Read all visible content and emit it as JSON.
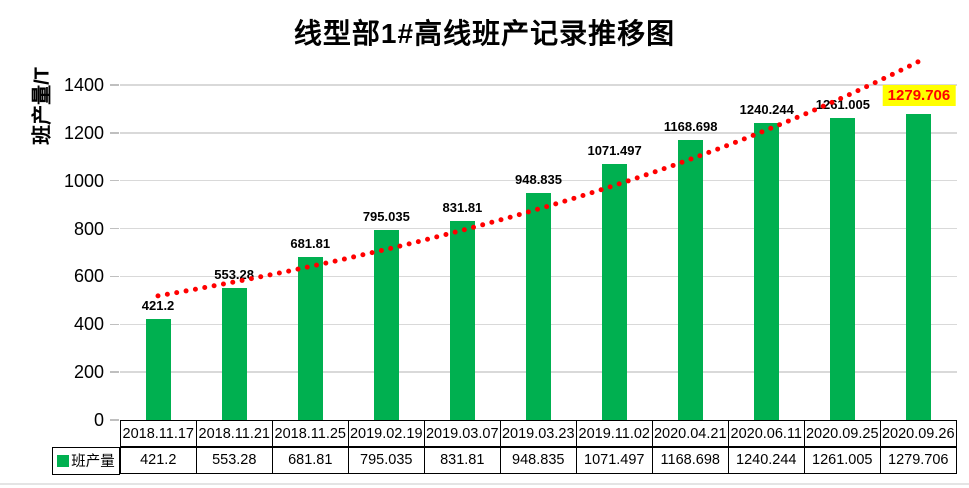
{
  "chart_data": {
    "type": "bar",
    "title": "线型部1#高线班产记录推移图",
    "ylabel": "班产量/T",
    "xlabel": "",
    "categories": [
      "2018.11.17",
      "2018.11.21",
      "2018.11.25",
      "2019.02.19",
      "2019.03.07",
      "2019.03.23",
      "2019.11.02",
      "2020.04.21",
      "2020.06.11",
      "2020.09.25",
      "2020.09.26"
    ],
    "series": [
      {
        "name": "班产量",
        "values": [
          421.2,
          553.28,
          681.81,
          795.035,
          831.81,
          948.835,
          1071.497,
          1168.698,
          1240.244,
          1261.005,
          1279.706
        ]
      }
    ],
    "value_labels": [
      "421.2",
      "553.28",
      "681.81",
      "795.035",
      "831.81",
      "948.835",
      "1071.497",
      "1168.698",
      "1240.244",
      "1261.005",
      "1279.706"
    ],
    "ylim": [
      0,
      1500
    ],
    "yticks": [
      0,
      200,
      400,
      600,
      800,
      1000,
      1200,
      1400
    ],
    "grid": true,
    "gridline_color": "#D9D9D9",
    "bar_color": "#00B050",
    "trendline": {
      "type": "exponential",
      "color": "#FF0000",
      "style": "dotted"
    },
    "highlight": {
      "index": 10,
      "background": "#FFFF00",
      "color": "#FF0000"
    },
    "legend": {
      "label": "班产量",
      "swatch_color": "#00B050",
      "position": "table-row-header"
    }
  }
}
